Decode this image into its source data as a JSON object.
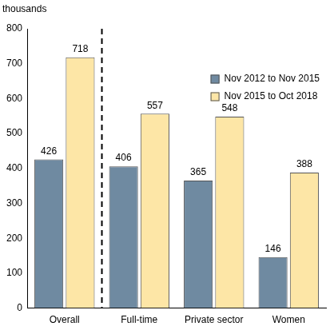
{
  "chart_data": {
    "type": "bar",
    "ylabel": "thousands",
    "categories": [
      "Overall",
      "Full-time",
      "Private sector",
      "Women"
    ],
    "series": [
      {
        "name": "Nov 2012 to Nov 2015",
        "color": "#6f8aa1",
        "values": [
          426,
          406,
          365,
          146
        ]
      },
      {
        "name": "Nov 2015 to Oct 2018",
        "color": "#fde6a6",
        "values": [
          718,
          557,
          548,
          388
        ]
      }
    ],
    "ylim": [
      0,
      800
    ],
    "yticks": [
      0,
      100,
      200,
      300,
      400,
      500,
      600,
      700,
      800
    ],
    "grid": false,
    "legend": "upper right",
    "data_labels": true
  }
}
